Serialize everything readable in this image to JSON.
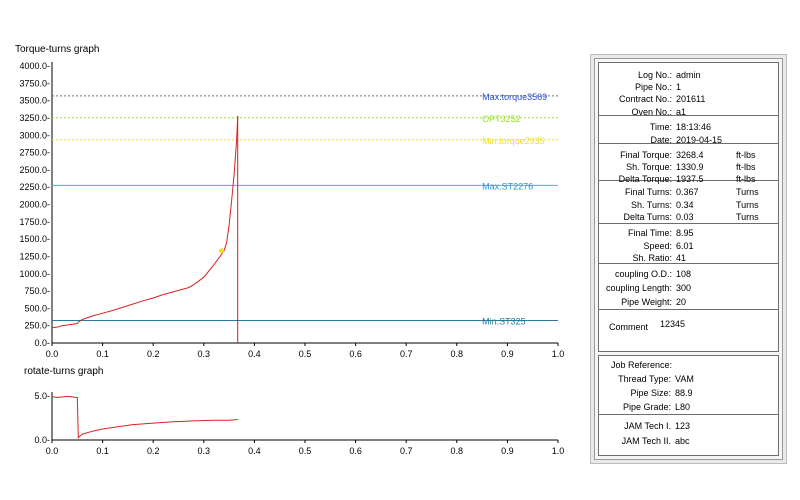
{
  "chart_data": [
    {
      "type": "line",
      "title": "Torque-turns graph",
      "xlim": [
        0,
        1.0
      ],
      "ylim": [
        0,
        4000
      ],
      "x_ticks": [
        "0.0",
        "0.1",
        "0.2",
        "0.3",
        "0.4",
        "0.5",
        "0.6",
        "0.7",
        "0.8",
        "0.9",
        "1.0"
      ],
      "y_ticks": [
        "0.0-",
        "250.0-",
        "500.0-",
        "750.0-",
        "1000.0-",
        "1250.0-",
        "1500.0-",
        "1750.0-",
        "2000.0-",
        "2250.0-",
        "2500.0-",
        "2750.0-",
        "3000.0-",
        "3250.0-",
        "3500.0-",
        "3750.0-",
        "4000.0-"
      ],
      "series": [
        {
          "color": "#dd2222",
          "x": [
            0.0,
            0.01,
            0.02,
            0.03,
            0.04,
            0.05,
            0.052,
            0.06,
            0.08,
            0.1,
            0.12,
            0.15,
            0.18,
            0.2,
            0.22,
            0.25,
            0.27,
            0.28,
            0.3,
            0.31,
            0.32,
            0.33,
            0.34,
            0.345,
            0.35,
            0.355,
            0.36,
            0.365,
            0.367
          ],
          "y": [
            220,
            230,
            250,
            260,
            270,
            280,
            300,
            340,
            390,
            430,
            470,
            540,
            610,
            650,
            700,
            760,
            800,
            840,
            950,
            1040,
            1130,
            1230,
            1330,
            1450,
            1700,
            2050,
            2450,
            2950,
            3268
          ]
        }
      ],
      "hlines": [
        {
          "label": "Max.torque3569",
          "value": 3569,
          "color": "#707070",
          "label_color": "#2a52c8",
          "style": "dotted"
        },
        {
          "label": "OPT3252",
          "value": 3252,
          "color": "#9be02a",
          "label_color": "#9be02a",
          "style": "dotted"
        },
        {
          "label": "Min.torque2935",
          "value": 2935,
          "color": "#f0e02a",
          "label_color": "#f0e02a",
          "style": "dotted"
        },
        {
          "label": "Max.ST2276",
          "value": 2276,
          "color": "#5aa8dc",
          "label_color": "#3a90cc",
          "style": "solid"
        },
        {
          "label": "Min.ST325",
          "value": 325,
          "color": "#2a7a9a",
          "label_color": "#2a7a9a",
          "style": "solid"
        }
      ],
      "vline": {
        "value": 0.367,
        "color": "#cc2222"
      },
      "marker": {
        "x": 0.335,
        "y": 1330.9,
        "color": "#e8e020"
      }
    },
    {
      "type": "line",
      "title": "rotate-turns graph",
      "xlim": [
        0,
        1.0
      ],
      "ylim": [
        0,
        6
      ],
      "x_ticks": [
        "0.0",
        "0.1",
        "0.2",
        "0.3",
        "0.4",
        "0.5",
        "0.6",
        "0.7",
        "0.8",
        "0.9",
        "1.0"
      ],
      "y_ticks": [
        "0.0-",
        "5.0-"
      ],
      "series": [
        {
          "color": "#dd2222",
          "x": [
            0.0,
            0.01,
            0.03,
            0.05,
            0.052,
            0.055,
            0.06,
            0.08,
            0.1,
            0.13,
            0.16,
            0.2,
            0.24,
            0.28,
            0.32,
            0.35,
            0.367
          ],
          "y": [
            5.9,
            5.8,
            5.95,
            5.8,
            0.3,
            0.5,
            0.8,
            1.2,
            1.5,
            1.8,
            2.1,
            2.3,
            2.5,
            2.6,
            2.7,
            2.7,
            2.8
          ]
        }
      ]
    }
  ],
  "panel": {
    "rows": [
      {
        "label": "Log No.:",
        "value": "admin",
        "unit": ""
      },
      {
        "label": "Pipe No.:",
        "value": "1",
        "unit": ""
      },
      {
        "label": "Contract No.:",
        "value": "201611",
        "unit": ""
      },
      {
        "label": "Oven No.:",
        "value": "a1",
        "unit": ""
      },
      {
        "label": "Time:",
        "value": "18:13:46",
        "unit": ""
      },
      {
        "label": "Date:",
        "value": "2019-04-15",
        "unit": ""
      },
      {
        "label": "Final Torque:",
        "value": "3268.4",
        "unit": "ft-lbs"
      },
      {
        "label": "Sh. Torque:",
        "value": "1330.9",
        "unit": "ft-lbs"
      },
      {
        "label": "Delta Torque:",
        "value": "1937.5",
        "unit": "ft-lbs"
      },
      {
        "label": "Final Turns:",
        "value": "0.367",
        "unit": "Turns"
      },
      {
        "label": "Sh. Turns:",
        "value": "0.34",
        "unit": "Turns"
      },
      {
        "label": "Delta Turns:",
        "value": "0.03",
        "unit": "Turns"
      },
      {
        "label": "Final Time:",
        "value": "8.95",
        "unit": ""
      },
      {
        "label": "Speed:",
        "value": "6.01",
        "unit": ""
      },
      {
        "label": "Sh. Ratio:",
        "value": "41",
        "unit": ""
      },
      {
        "label": "coupling O.D.:",
        "value": "108",
        "unit": ""
      },
      {
        "label": "coupling Length:",
        "value": "300",
        "unit": ""
      },
      {
        "label": "Pipe Weight:",
        "value": "20",
        "unit": ""
      },
      {
        "label": "Comment",
        "value": "12345",
        "unit": ""
      }
    ],
    "job": {
      "title": "Job Reference:",
      "rows": [
        {
          "label": "Thread Type:",
          "value": "VAM"
        },
        {
          "label": "Pipe Size:",
          "value": "88.9"
        },
        {
          "label": "Pipe Grade:",
          "value": "L80"
        },
        {
          "label": "JAM Tech I.",
          "value": "123"
        },
        {
          "label": "JAM Tech II.",
          "value": "abc"
        }
      ]
    }
  }
}
